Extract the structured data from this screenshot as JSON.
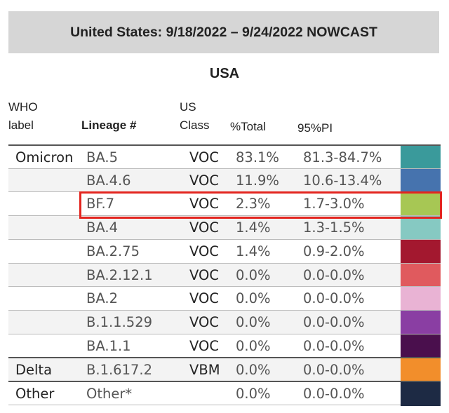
{
  "banner": {
    "title": "United States: 9/18/2022 – 9/24/2022 NOWCAST"
  },
  "region": "USA",
  "headers": {
    "who_line1": "WHO",
    "who_line2": "label",
    "lineage": "Lineage #",
    "class_line1": "US",
    "class_line2": "Class",
    "pct_total": "%Total",
    "pi": "95%PI"
  },
  "rows": [
    {
      "who": "Omicron",
      "lineage": "BA.5",
      "class": "VOC",
      "pct": "83.1%",
      "pi": "81.3-84.7%",
      "color": "#3a9a9b"
    },
    {
      "who": "",
      "lineage": "BA.4.6",
      "class": "VOC",
      "pct": "11.9%",
      "pi": "10.6-13.4%",
      "color": "#4673ae"
    },
    {
      "who": "",
      "lineage": "BF.7",
      "class": "VOC",
      "pct": "2.3%",
      "pi": "1.7-3.0%",
      "color": "#a7c754",
      "highlighted": true
    },
    {
      "who": "",
      "lineage": "BA.4",
      "class": "VOC",
      "pct": "1.4%",
      "pi": "1.3-1.5%",
      "color": "#86c9c2"
    },
    {
      "who": "",
      "lineage": "BA.2.75",
      "class": "VOC",
      "pct": "1.4%",
      "pi": "0.9-2.0%",
      "color": "#a3182f"
    },
    {
      "who": "",
      "lineage": "BA.2.12.1",
      "class": "VOC",
      "pct": "0.0%",
      "pi": "0.0-0.0%",
      "color": "#e05a5e"
    },
    {
      "who": "",
      "lineage": "BA.2",
      "class": "VOC",
      "pct": "0.0%",
      "pi": "0.0-0.0%",
      "color": "#e9b3d4"
    },
    {
      "who": "",
      "lineage": "B.1.1.529",
      "class": "VOC",
      "pct": "0.0%",
      "pi": "0.0-0.0%",
      "color": "#8a3ea3"
    },
    {
      "who": "",
      "lineage": "BA.1.1",
      "class": "VOC",
      "pct": "0.0%",
      "pi": "0.0-0.0%",
      "color": "#4a0f4d"
    },
    {
      "who": "Delta",
      "lineage": "B.1.617.2",
      "class": "VBM",
      "pct": "0.0%",
      "pi": "0.0-0.0%",
      "color": "#f28e2b"
    },
    {
      "who": "Other",
      "lineage": "Other*",
      "class": "",
      "pct": "0.0%",
      "pi": "0.0-0.0%",
      "color": "#1d2a44"
    }
  ]
}
